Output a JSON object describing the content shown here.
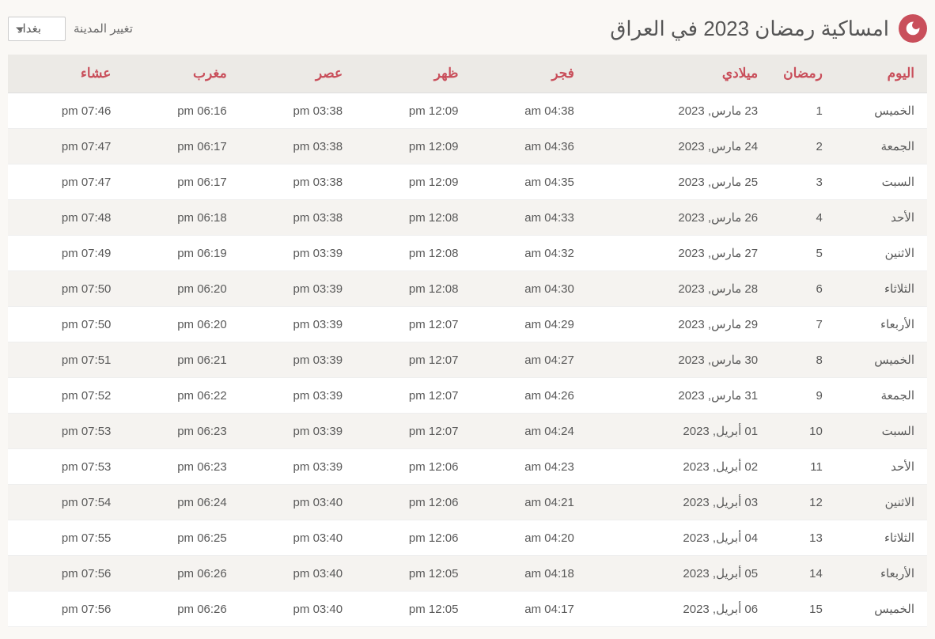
{
  "header": {
    "title": "امساكية رمضان 2023 في العراق",
    "city_label": "تغيير المدينة",
    "city_value": "بغداد"
  },
  "table": {
    "columns": [
      "اليوم",
      "رمضان",
      "ميلادي",
      "فجر",
      "ظهر",
      "عصر",
      "مغرب",
      "عشاء"
    ],
    "rows": [
      [
        "الخميس",
        "1",
        "23 مارس, 2023",
        "04:38 am",
        "12:09 pm",
        "03:38 pm",
        "06:16 pm",
        "07:46 pm"
      ],
      [
        "الجمعة",
        "2",
        "24 مارس, 2023",
        "04:36 am",
        "12:09 pm",
        "03:38 pm",
        "06:17 pm",
        "07:47 pm"
      ],
      [
        "السبت",
        "3",
        "25 مارس, 2023",
        "04:35 am",
        "12:09 pm",
        "03:38 pm",
        "06:17 pm",
        "07:47 pm"
      ],
      [
        "الأحد",
        "4",
        "26 مارس, 2023",
        "04:33 am",
        "12:08 pm",
        "03:38 pm",
        "06:18 pm",
        "07:48 pm"
      ],
      [
        "الاثنين",
        "5",
        "27 مارس, 2023",
        "04:32 am",
        "12:08 pm",
        "03:39 pm",
        "06:19 pm",
        "07:49 pm"
      ],
      [
        "الثلاثاء",
        "6",
        "28 مارس, 2023",
        "04:30 am",
        "12:08 pm",
        "03:39 pm",
        "06:20 pm",
        "07:50 pm"
      ],
      [
        "الأربعاء",
        "7",
        "29 مارس, 2023",
        "04:29 am",
        "12:07 pm",
        "03:39 pm",
        "06:20 pm",
        "07:50 pm"
      ],
      [
        "الخميس",
        "8",
        "30 مارس, 2023",
        "04:27 am",
        "12:07 pm",
        "03:39 pm",
        "06:21 pm",
        "07:51 pm"
      ],
      [
        "الجمعة",
        "9",
        "31 مارس, 2023",
        "04:26 am",
        "12:07 pm",
        "03:39 pm",
        "06:22 pm",
        "07:52 pm"
      ],
      [
        "السبت",
        "10",
        "01 أبريل, 2023",
        "04:24 am",
        "12:07 pm",
        "03:39 pm",
        "06:23 pm",
        "07:53 pm"
      ],
      [
        "الأحد",
        "11",
        "02 أبريل, 2023",
        "04:23 am",
        "12:06 pm",
        "03:39 pm",
        "06:23 pm",
        "07:53 pm"
      ],
      [
        "الاثنين",
        "12",
        "03 أبريل, 2023",
        "04:21 am",
        "12:06 pm",
        "03:40 pm",
        "06:24 pm",
        "07:54 pm"
      ],
      [
        "الثلاثاء",
        "13",
        "04 أبريل, 2023",
        "04:20 am",
        "12:06 pm",
        "03:40 pm",
        "06:25 pm",
        "07:55 pm"
      ],
      [
        "الأربعاء",
        "14",
        "05 أبريل, 2023",
        "04:18 am",
        "12:05 pm",
        "03:40 pm",
        "06:26 pm",
        "07:56 pm"
      ],
      [
        "الخميس",
        "15",
        "06 أبريل, 2023",
        "04:17 am",
        "12:05 pm",
        "03:40 pm",
        "06:26 pm",
        "07:56 pm"
      ]
    ]
  },
  "style": {
    "header_bg": "#eceae6",
    "header_text": "#c94f5b",
    "row_odd_bg": "#ffffff",
    "row_even_bg": "#f5f3f0",
    "accent": "#c94f5b",
    "page_bg": "#faf8f5"
  }
}
